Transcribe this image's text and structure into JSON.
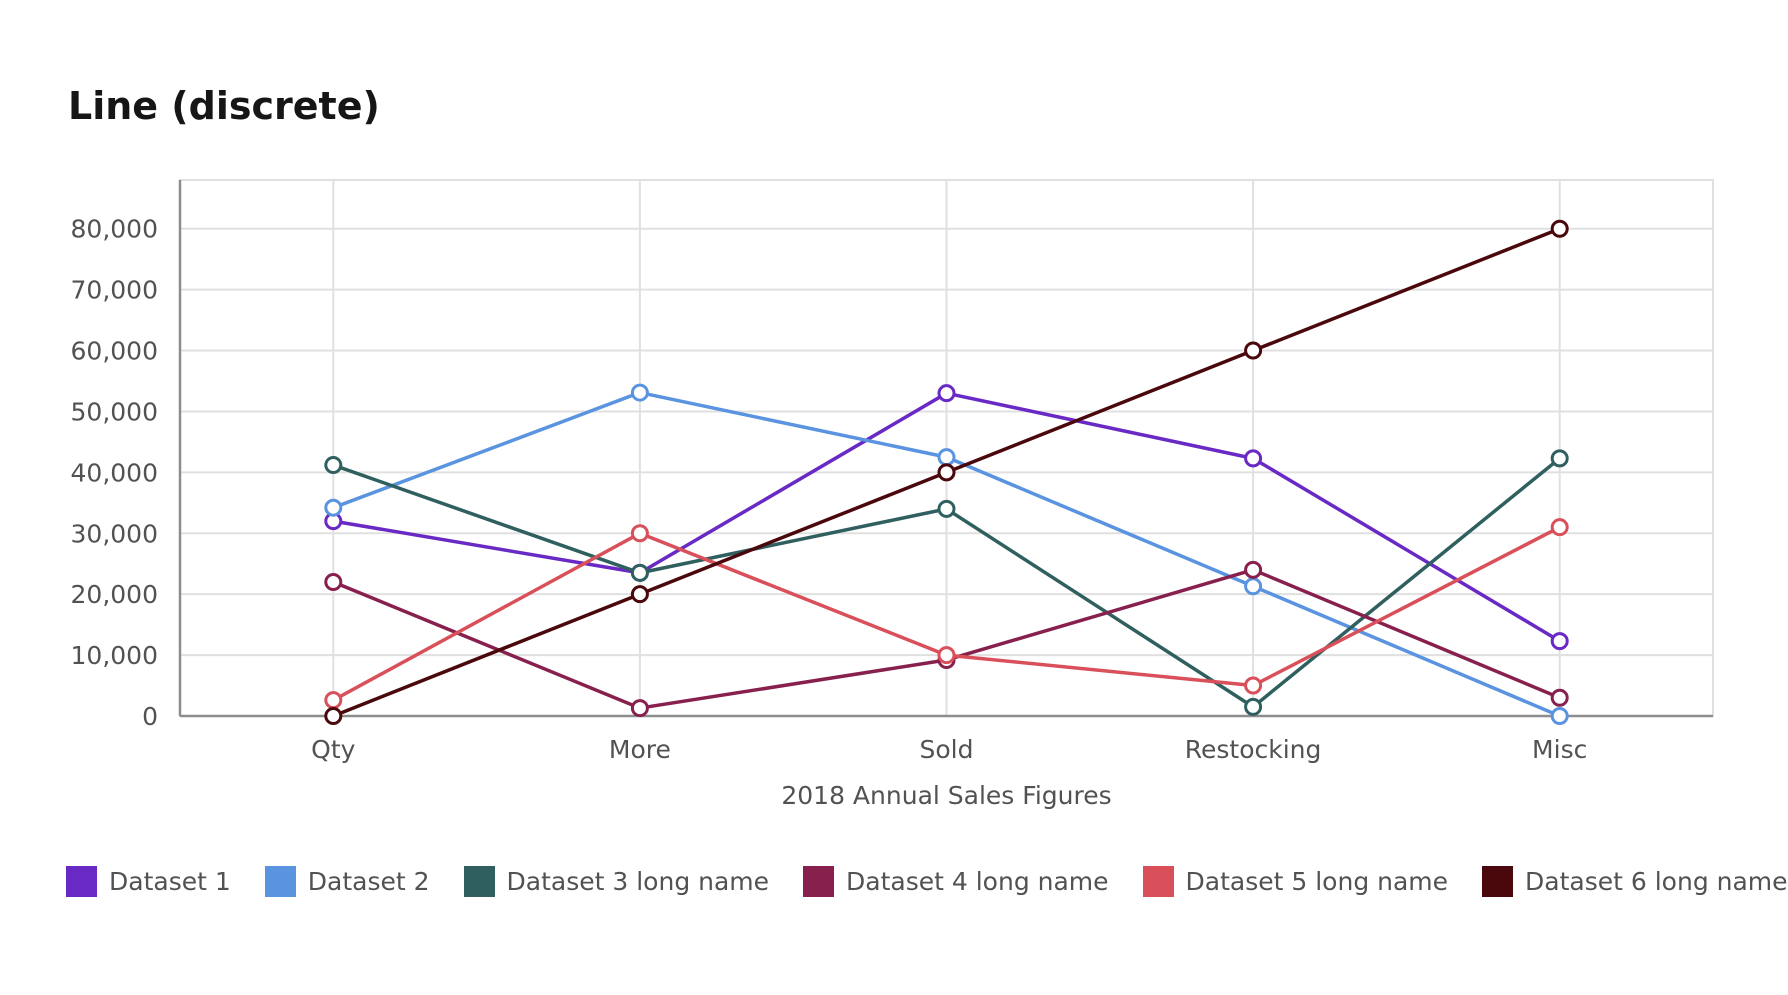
{
  "chart_data": {
    "type": "line",
    "title": "Line (discrete)",
    "xlabel": "2018 Annual Sales Figures",
    "ylabel": "",
    "categories": [
      "Qty",
      "More",
      "Sold",
      "Restocking",
      "Misc"
    ],
    "ylim": [
      0,
      88000
    ],
    "yticks": [
      0,
      10000,
      20000,
      30000,
      40000,
      50000,
      60000,
      70000,
      80000
    ],
    "ytick_labels": [
      "0",
      "10,000",
      "20,000",
      "30,000",
      "40,000",
      "50,000",
      "60,000",
      "70,000",
      "80,000"
    ],
    "grid": true,
    "legend_position": "bottom-left",
    "series": [
      {
        "name": "Dataset 1",
        "color": "#6929c4",
        "values": [
          32000,
          23500,
          53000,
          42300,
          12300
        ]
      },
      {
        "name": "Dataset 2",
        "color": "#5a93e0",
        "values": [
          34200,
          53100,
          42500,
          21300,
          0
        ]
      },
      {
        "name": "Dataset 3 long name",
        "color": "#2f5f5e",
        "values": [
          41200,
          23500,
          34000,
          1500,
          42300
        ]
      },
      {
        "name": "Dataset 4 long name",
        "color": "#88204e",
        "values": [
          22000,
          1300,
          9200,
          24000,
          3000
        ]
      },
      {
        "name": "Dataset 5 long name",
        "color": "#d9505a",
        "values": [
          2600,
          30000,
          10000,
          5000,
          31000
        ]
      },
      {
        "name": "Dataset 6 long name",
        "color": "#4a080c",
        "values": [
          0,
          20000,
          40000,
          60000,
          80000
        ]
      }
    ]
  }
}
